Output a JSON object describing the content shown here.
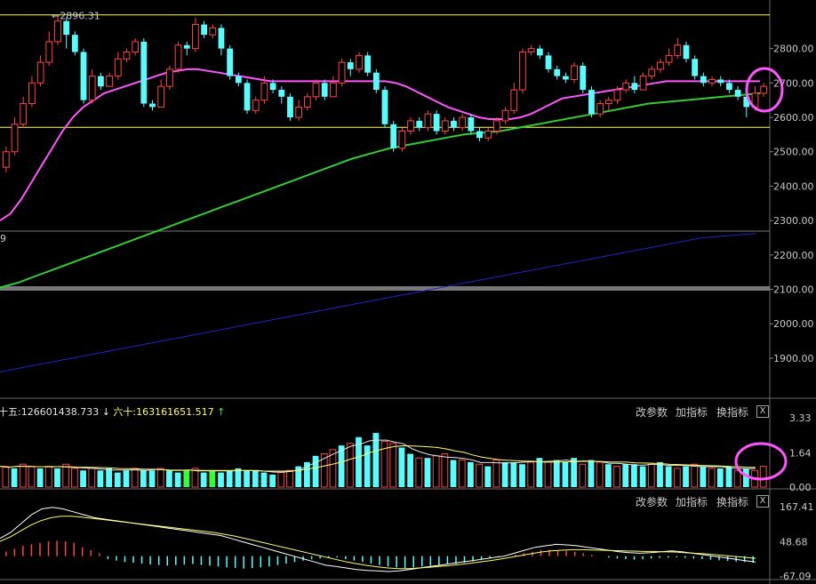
{
  "chart_data": [
    {
      "type": "candlestick",
      "panel": "price",
      "y_axis_ticks": [
        "2800.00",
        "2700.00",
        "2600.00",
        "2500.00",
        "2400.00",
        "2300.00",
        "2200.00",
        "2100.00",
        "2000.00",
        "1900.00"
      ],
      "ylim": [
        1830,
        2905
      ],
      "annotations": [
        {
          "label": "2896.31",
          "value": 2896.31
        }
      ],
      "horizontal_lines": [
        2898,
        2571
      ],
      "candles": [
        [
          2455,
          2500,
          2440,
          2515
        ],
        [
          2500,
          2580,
          2490,
          2600
        ],
        [
          2580,
          2640,
          2570,
          2660
        ],
        [
          2640,
          2700,
          2630,
          2720
        ],
        [
          2700,
          2760,
          2690,
          2780
        ],
        [
          2760,
          2820,
          2750,
          2850
        ],
        [
          2820,
          2880,
          2810,
          2896
        ],
        [
          2880,
          2840,
          2800,
          2890
        ],
        [
          2840,
          2790,
          2780,
          2850
        ],
        [
          2790,
          2650,
          2640,
          2800
        ],
        [
          2650,
          2720,
          2640,
          2740
        ],
        [
          2720,
          2690,
          2680,
          2730
        ],
        [
          2690,
          2720,
          2690,
          2730
        ],
        [
          2720,
          2770,
          2710,
          2790
        ],
        [
          2770,
          2790,
          2760,
          2800
        ],
        [
          2790,
          2820,
          2780,
          2830
        ],
        [
          2820,
          2640,
          2630,
          2830
        ],
        [
          2640,
          2630,
          2620,
          2650
        ],
        [
          2630,
          2690,
          2630,
          2710
        ],
        [
          2690,
          2740,
          2680,
          2750
        ],
        [
          2740,
          2810,
          2730,
          2820
        ],
        [
          2810,
          2800,
          2780,
          2820
        ],
        [
          2800,
          2870,
          2790,
          2890
        ],
        [
          2870,
          2840,
          2830,
          2880
        ],
        [
          2840,
          2860,
          2830,
          2870
        ],
        [
          2860,
          2800,
          2780,
          2870
        ],
        [
          2800,
          2720,
          2710,
          2810
        ],
        [
          2720,
          2700,
          2690,
          2730
        ],
        [
          2700,
          2620,
          2610,
          2710
        ],
        [
          2620,
          2650,
          2610,
          2660
        ],
        [
          2650,
          2700,
          2640,
          2720
        ],
        [
          2700,
          2680,
          2670,
          2710
        ],
        [
          2680,
          2660,
          2640,
          2690
        ],
        [
          2660,
          2600,
          2590,
          2670
        ],
        [
          2600,
          2630,
          2590,
          2650
        ],
        [
          2630,
          2660,
          2620,
          2670
        ],
        [
          2660,
          2700,
          2650,
          2710
        ],
        [
          2700,
          2660,
          2650,
          2710
        ],
        [
          2660,
          2700,
          2660,
          2720
        ],
        [
          2700,
          2760,
          2690,
          2770
        ],
        [
          2760,
          2740,
          2720,
          2770
        ],
        [
          2740,
          2780,
          2730,
          2790
        ],
        [
          2780,
          2730,
          2720,
          2790
        ],
        [
          2730,
          2680,
          2670,
          2740
        ],
        [
          2680,
          2580,
          2570,
          2690
        ],
        [
          2580,
          2510,
          2500,
          2590
        ],
        [
          2510,
          2560,
          2500,
          2570
        ],
        [
          2560,
          2590,
          2550,
          2600
        ],
        [
          2590,
          2570,
          2560,
          2600
        ],
        [
          2570,
          2610,
          2560,
          2620
        ],
        [
          2610,
          2560,
          2550,
          2620
        ],
        [
          2560,
          2590,
          2550,
          2600
        ],
        [
          2590,
          2570,
          2560,
          2600
        ],
        [
          2570,
          2600,
          2560,
          2610
        ],
        [
          2600,
          2560,
          2550,
          2610
        ],
        [
          2560,
          2540,
          2530,
          2570
        ],
        [
          2540,
          2560,
          2530,
          2570
        ],
        [
          2560,
          2590,
          2550,
          2600
        ],
        [
          2590,
          2620,
          2580,
          2630
        ],
        [
          2620,
          2680,
          2610,
          2700
        ],
        [
          2680,
          2790,
          2670,
          2800
        ],
        [
          2790,
          2800,
          2780,
          2810
        ],
        [
          2800,
          2780,
          2770,
          2810
        ],
        [
          2780,
          2740,
          2730,
          2790
        ],
        [
          2740,
          2720,
          2710,
          2750
        ],
        [
          2720,
          2710,
          2700,
          2730
        ],
        [
          2710,
          2750,
          2700,
          2760
        ],
        [
          2750,
          2680,
          2670,
          2760
        ],
        [
          2680,
          2610,
          2600,
          2690
        ],
        [
          2610,
          2640,
          2600,
          2650
        ],
        [
          2640,
          2650,
          2620,
          2660
        ],
        [
          2650,
          2680,
          2640,
          2690
        ],
        [
          2680,
          2700,
          2670,
          2710
        ],
        [
          2700,
          2680,
          2670,
          2720
        ],
        [
          2680,
          2720,
          2680,
          2730
        ],
        [
          2720,
          2740,
          2710,
          2750
        ],
        [
          2740,
          2760,
          2730,
          2770
        ],
        [
          2760,
          2780,
          2750,
          2800
        ],
        [
          2780,
          2810,
          2770,
          2830
        ],
        [
          2810,
          2770,
          2760,
          2820
        ],
        [
          2770,
          2720,
          2710,
          2780
        ],
        [
          2720,
          2700,
          2690,
          2730
        ],
        [
          2700,
          2710,
          2690,
          2720
        ],
        [
          2710,
          2700,
          2690,
          2720
        ],
        [
          2700,
          2680,
          2670,
          2710
        ],
        [
          2680,
          2660,
          2650,
          2690
        ],
        [
          2660,
          2630,
          2600,
          2670
        ],
        [
          2630,
          2670,
          2620,
          2690
        ],
        [
          2670,
          2690,
          2660,
          2700
        ]
      ],
      "moving_averages": [
        {
          "color": "#ff55ff",
          "values": [
            2300,
            2320,
            2360,
            2410,
            2460,
            2510,
            2560,
            2600,
            2630,
            2650,
            2670,
            2680,
            2690,
            2700,
            2710,
            2720,
            2730,
            2735,
            2740,
            2740,
            2735,
            2730,
            2725,
            2720,
            2715,
            2710,
            2705,
            2705,
            2705,
            2705,
            2705,
            2705,
            2705,
            2705,
            2705,
            2705,
            2705,
            2705,
            2700,
            2690,
            2675,
            2660,
            2645,
            2630,
            2620,
            2610,
            2600,
            2595,
            2595,
            2595,
            2600,
            2610,
            2625,
            2640,
            2655,
            2660,
            2665,
            2670,
            2675,
            2680,
            2685,
            2690,
            2695,
            2700,
            2705,
            2705,
            2705,
            2705,
            2705,
            2705,
            2705,
            2705,
            2705,
            2705
          ]
        },
        {
          "color": "#33cc33",
          "values": [
            2105,
            2120,
            2140,
            2160,
            2180,
            2200,
            2220,
            2240,
            2260,
            2280,
            2300,
            2320,
            2340,
            2360,
            2380,
            2400,
            2420,
            2440,
            2460,
            2480,
            2495,
            2510,
            2520,
            2530,
            2540,
            2550,
            2555,
            2560,
            2570,
            2580,
            2590,
            2600,
            2610,
            2620,
            2630,
            2640,
            2645,
            2650,
            2655,
            2660,
            2665,
            2670
          ]
        },
        {
          "color": "#2222cc",
          "values": [
            1860,
            1890,
            1920,
            1950,
            1980,
            2010,
            2040,
            2070,
            2100,
            2130,
            2160,
            2190,
            2220,
            2250,
            2262
          ]
        }
      ]
    },
    {
      "type": "bar",
      "panel": "volume",
      "y_axis_ticks": [
        "3.33",
        "1.64",
        "0.00"
      ],
      "ylim": [
        0,
        3.33
      ],
      "values": [
        1.0,
        0.9,
        1.1,
        1.0,
        0.9,
        1.0,
        0.9,
        1.1,
        0.9,
        0.8,
        0.9,
        0.8,
        0.9,
        0.7,
        0.8,
        0.9,
        0.8,
        0.8,
        0.9,
        0.8,
        0.7,
        0.8,
        0.9,
        0.7,
        0.8,
        0.7,
        0.8,
        0.9,
        0.8,
        0.8,
        0.7,
        0.6,
        0.7,
        0.8,
        1.0,
        1.2,
        1.5,
        1.6,
        1.8,
        2.0,
        2.1,
        2.4,
        2.0,
        2.6,
        2.2,
        2.1,
        1.9,
        1.6,
        1.4,
        1.4,
        1.5,
        1.6,
        1.3,
        1.3,
        1.2,
        1.1,
        1.0,
        1.3,
        1.2,
        1.2,
        1.1,
        1.2,
        1.4,
        1.2,
        1.3,
        1.2,
        1.4,
        1.1,
        1.3,
        1.2,
        1.1,
        1.0,
        1.1,
        1.1,
        1.0,
        1.1,
        1.2,
        1.0,
        0.9,
        1.0,
        1.1,
        1.0,
        0.9,
        0.9,
        1.0,
        0.8,
        0.9,
        0.8,
        1.0
      ],
      "up": [
        1,
        0,
        1,
        1,
        0,
        1,
        0,
        1,
        1,
        0,
        1,
        0,
        0,
        0,
        0,
        1,
        0,
        0,
        1,
        0,
        0,
        0,
        1,
        0,
        0,
        0,
        0,
        0,
        0,
        0,
        0,
        0,
        1,
        1,
        0,
        0,
        0,
        1,
        1,
        0,
        1,
        0,
        0,
        0,
        1,
        1,
        0,
        0,
        1,
        0,
        1,
        1,
        0,
        1,
        0,
        1,
        0,
        1,
        0,
        0,
        0,
        1,
        0,
        1,
        0,
        0,
        0,
        1,
        0,
        1,
        0,
        1,
        0,
        0,
        0,
        1,
        0,
        0,
        1,
        0,
        1,
        0,
        1,
        0,
        0,
        1,
        0,
        1,
        1
      ],
      "green_indices": [
        21,
        24
      ],
      "moving_averages": [
        {
          "name": "十五",
          "value": "126601438.733",
          "direction": "↓",
          "color": "#e6e6e6"
        },
        {
          "name": "六十",
          "value": "163161651.517",
          "direction": "↑",
          "color": "#ffff66"
        }
      ]
    },
    {
      "type": "macd",
      "panel": "indicator",
      "y_axis_ticks": [
        "167.41",
        "48.68",
        "-67.09"
      ],
      "ylim": [
        -67.09,
        167.41
      ],
      "histogram": [
        15,
        25,
        35,
        40,
        45,
        50,
        52,
        50,
        45,
        30,
        20,
        10,
        -10,
        -15,
        -20,
        -22,
        -25,
        -28,
        -30,
        -32,
        -30,
        -28,
        -26,
        -30,
        -32,
        -35,
        -38,
        -40,
        -42,
        -40,
        -38,
        -35,
        -30,
        -25,
        -20,
        -15,
        -10,
        -8,
        -6,
        -5,
        -10,
        -15,
        -20,
        -25,
        -30,
        -35,
        -38,
        -40,
        -38,
        -35,
        -32,
        -30,
        -28,
        -26,
        -22,
        -18,
        -12,
        -8,
        -4,
        0,
        5,
        10,
        15,
        20,
        22,
        20,
        18,
        15,
        10,
        5,
        0,
        -5,
        -8,
        -10,
        -12,
        -10,
        -8,
        -6,
        -5,
        -4,
        -6,
        -8,
        -10,
        -12,
        -14,
        -16,
        -18,
        -20,
        -22
      ],
      "dif": [
        60,
        80,
        110,
        140,
        160,
        165,
        160,
        150,
        140,
        130,
        125,
        120,
        115,
        110,
        105,
        100,
        95,
        90,
        85,
        80,
        75,
        70,
        60,
        50,
        40,
        30,
        20,
        10,
        0,
        -10,
        -20,
        -30,
        -35,
        -40,
        -45,
        -48,
        -50,
        -52,
        -50,
        -45,
        -40,
        -35,
        -30,
        -25,
        -20,
        -15,
        -10,
        -5,
        0,
        10,
        20,
        30,
        35,
        40,
        38,
        35,
        30,
        25,
        20,
        15,
        12,
        10,
        12,
        15,
        18,
        15,
        10,
        5,
        0,
        -5,
        -10,
        -15,
        -20
      ],
      "dea": [
        50,
        65,
        85,
        105,
        120,
        130,
        135,
        135,
        132,
        128,
        124,
        120,
        116,
        112,
        108,
        104,
        100,
        96,
        92,
        88,
        84,
        80,
        74,
        68,
        60,
        52,
        44,
        36,
        28,
        20,
        12,
        4,
        -4,
        -12,
        -20,
        -26,
        -32,
        -36,
        -40,
        -42,
        -42,
        -40,
        -38,
        -35,
        -32,
        -28,
        -24,
        -20,
        -15,
        -10,
        -4,
        2,
        8,
        14,
        18,
        20,
        22,
        22,
        21,
        20,
        19,
        18,
        17,
        16,
        16,
        15,
        14,
        12,
        10,
        8,
        5,
        2,
        -1,
        -4,
        -8
      ]
    }
  ],
  "toolbar_volume": {
    "params_label": "改参数",
    "add_label": "加指标",
    "switch_label": "换指标",
    "close_label": "X"
  },
  "toolbar_indicator": {
    "params_label": "改参数",
    "add_label": "加指标",
    "switch_label": "换指标",
    "close_label": "X"
  },
  "colors": {
    "up": "#ff4444",
    "down": "#55ffff",
    "highlight": "#ff55ff",
    "grid": "#555555",
    "frame": "#ffff66",
    "ma_green": "#33cc33",
    "ma_blue": "#2222cc",
    "ma_pink": "#ff55ff",
    "volume_green": "#33ff33"
  },
  "side_label": "9",
  "side_label_2": "十五"
}
